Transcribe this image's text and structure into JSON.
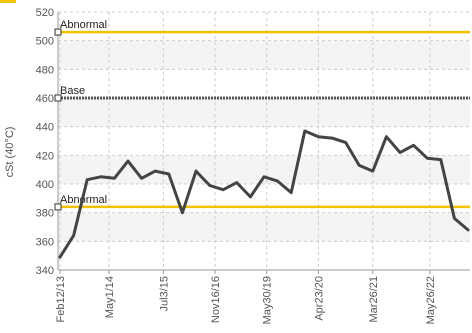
{
  "chart_data": {
    "type": "line",
    "ylabel": "cSt (40°C)",
    "ylim": [
      340,
      520
    ],
    "yticks": [
      340,
      360,
      380,
      400,
      420,
      440,
      460,
      480,
      500,
      520
    ],
    "grid": true,
    "x_tick_labels": [
      "Feb12/13",
      "May1/14",
      "Jul3/15",
      "Nov16/16",
      "May30/19",
      "Apr23/20",
      "Mar26/21",
      "May26/22"
    ],
    "series": [
      {
        "values": [
          349,
          364,
          403,
          405,
          404,
          416,
          404,
          409,
          407,
          380,
          409,
          399,
          396,
          401,
          391,
          405,
          402,
          394,
          437,
          433,
          432,
          429,
          413,
          409,
          433,
          422,
          427,
          418,
          417,
          376,
          368
        ]
      }
    ],
    "reference_lines": [
      {
        "label": "Abnormal",
        "value": 506,
        "color": "#f2c200",
        "style": "solid"
      },
      {
        "label": "Base",
        "value": 460,
        "color": "#555555",
        "style": "dotted"
      },
      {
        "label": "Abnormal",
        "value": 384,
        "color": "#f2c200",
        "style": "solid"
      }
    ],
    "colors": {
      "line": "#444444",
      "grid": "#cccccc",
      "band": "#f4f4f4",
      "accent": "#f2c200"
    }
  }
}
